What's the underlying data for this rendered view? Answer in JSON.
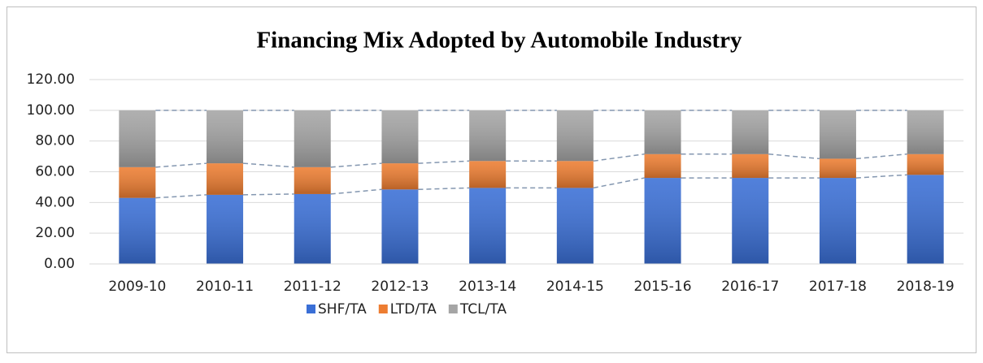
{
  "chart_data": {
    "type": "stacked_bar",
    "title": "Financing Mix Adopted by Automobile Industry",
    "categories": [
      "2009-10",
      "2010-11",
      "2011-12",
      "2012-13",
      "2013-14",
      "2014-15",
      "2015-16",
      "2016-17",
      "2017-18",
      "2018-19"
    ],
    "series": [
      {
        "name": "SHF/TA",
        "color": "#3a6fd6",
        "values": [
          43,
          45,
          45.5,
          48.5,
          49.5,
          49.5,
          56,
          56,
          56,
          58
        ]
      },
      {
        "name": "LTD/TA",
        "color": "#ed7d31",
        "values": [
          20,
          20.5,
          17.5,
          17,
          17.5,
          17.5,
          15.5,
          15.5,
          12.5,
          13.5
        ]
      },
      {
        "name": "TCL/TA",
        "color": "#a5a5a5",
        "values": [
          37,
          34.5,
          37,
          34.5,
          33,
          33,
          28.5,
          28.5,
          31.5,
          28.5
        ]
      }
    ],
    "ylim": [
      0,
      120
    ],
    "yticks": [
      {
        "value": 0,
        "label": "0.00"
      },
      {
        "value": 20,
        "label": "20.00"
      },
      {
        "value": 40,
        "label": "40.00"
      },
      {
        "value": 60,
        "label": "60.00"
      },
      {
        "value": 80,
        "label": "80.00"
      },
      {
        "value": 100,
        "label": "100.00"
      },
      {
        "value": 120,
        "label": "120.00"
      }
    ],
    "grid": true,
    "legend": "bottom",
    "series_lines": true
  }
}
